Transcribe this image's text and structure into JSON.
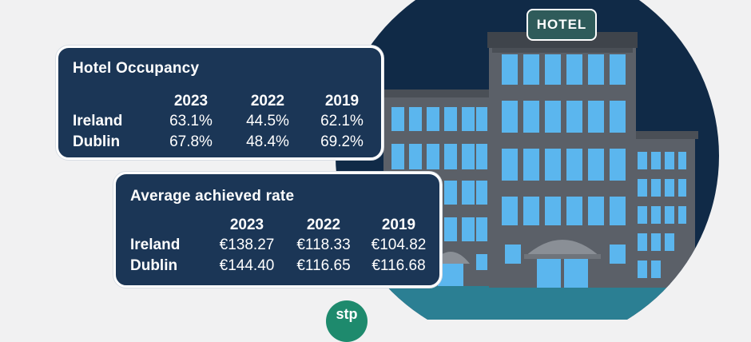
{
  "occupancy": {
    "title": "Hotel Occupancy",
    "years": [
      "2023",
      "2022",
      "2019"
    ],
    "rows": [
      {
        "label": "Ireland",
        "values": [
          "63.1%",
          "44.5%",
          "62.1%"
        ]
      },
      {
        "label": "Dublin",
        "values": [
          "67.8%",
          "48.4%",
          "69.2%"
        ]
      }
    ]
  },
  "rate": {
    "title": "Average achieved rate",
    "years": [
      "2023",
      "2022",
      "2019"
    ],
    "rows": [
      {
        "label": "Ireland",
        "values": [
          "€138.27",
          "€118.33",
          "€104.82"
        ]
      },
      {
        "label": "Dublin",
        "values": [
          "€144.40",
          "€116.65",
          "€116.68"
        ]
      }
    ]
  },
  "building": {
    "sign": "HOTEL"
  },
  "colors": {
    "card_bg": "#1b3656",
    "sky": "#102a47",
    "building": "#5b6068",
    "window": "#5bb6ee",
    "ground": "#2b7f93",
    "sign_bg": "#2f5b5a"
  },
  "logo": {
    "text": "stp"
  }
}
